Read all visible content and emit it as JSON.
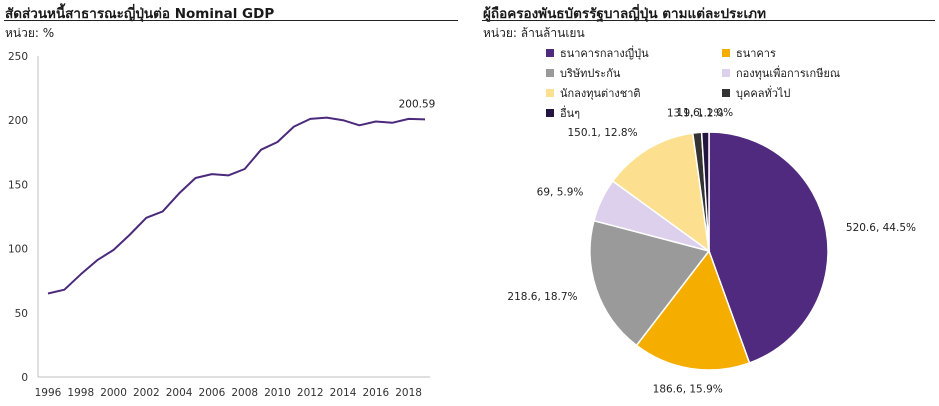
{
  "left_chart": {
    "title": "สัดส่วนหนี้สาธารณะญี่ปุ่นต่อ Nominal GDP",
    "unit": "หน่วย: %",
    "annotation": "200.59",
    "colors": {
      "line": "#4b2a7b",
      "axis": "#bfbfbf"
    }
  },
  "right_chart": {
    "title": "ผู้ถือครองพันธบัตรรัฐบาลญี่ปุ่น ตามแต่ละประเภท",
    "unit": "หน่วย: ล้านล้านเยน",
    "legend": [
      {
        "label": "ธนาคารกลางญี่ปุ่น",
        "color": "#4f2a7f"
      },
      {
        "label": "ธนาคาร",
        "color": "#f5ae00"
      },
      {
        "label": "บริษัทประกัน",
        "color": "#9a9a9a"
      },
      {
        "label": "กองทุนเพื่อการเกษียณ",
        "color": "#dcd0ec"
      },
      {
        "label": "นักลงทุนต่างชาติ",
        "color": "#fde08f"
      },
      {
        "label": "บุคคลทั่วไป",
        "color": "#333333"
      },
      {
        "label": "อื่นๆ",
        "color": "#241540"
      }
    ],
    "slice_labels": [
      "520.6, 44.5%",
      "186.6, 15.9%",
      "218.6, 18.7%",
      "69, 5.9%",
      "150.1, 12.8%",
      "13.9, 1.2%",
      "11.6, 1.0%"
    ]
  },
  "chart_data": [
    {
      "type": "line",
      "title": "สัดส่วนหนี้สาธารณะญี่ปุ่นต่อ Nominal GDP",
      "ylabel": "หน่วย: %",
      "xlabel": "",
      "ylim": [
        0,
        250
      ],
      "yticks": [
        0,
        50,
        100,
        150,
        200,
        250
      ],
      "xticks": [
        "1996",
        "1998",
        "2000",
        "2002",
        "2004",
        "2006",
        "2008",
        "2010",
        "2012",
        "2014",
        "2016",
        "2018"
      ],
      "x": [
        1996,
        1997,
        1998,
        1999,
        2000,
        2001,
        2002,
        2003,
        2004,
        2005,
        2006,
        2007,
        2008,
        2009,
        2010,
        2011,
        2012,
        2013,
        2014,
        2015,
        2016,
        2017,
        2018,
        2019
      ],
      "series": [
        {
          "values": [
            65,
            68,
            80,
            91,
            99,
            111,
            124,
            129,
            143,
            155,
            158,
            157,
            162,
            177,
            183,
            195,
            201,
            202,
            200,
            196,
            199,
            198,
            201,
            200.59
          ]
        }
      ],
      "grid": false
    },
    {
      "type": "pie",
      "title": "ผู้ถือครองพันธบัตรรัฐบาลญี่ปุ่น ตามแต่ละประเภท",
      "unit": "หน่วย: ล้านล้านเยน",
      "categories": [
        "ธนาคารกลางญี่ปุ่น",
        "ธนาคาร",
        "บริษัทประกัน",
        "กองทุนเพื่อการเกษียณ",
        "นักลงทุนต่างชาติ",
        "บุคคลทั่วไป",
        "อื่นๆ"
      ],
      "values": [
        520.6,
        186.6,
        218.6,
        69,
        150.1,
        13.9,
        11.6
      ],
      "percents": [
        44.5,
        15.9,
        18.7,
        5.9,
        12.8,
        1.2,
        1.0
      ],
      "legend_position": "top"
    }
  ]
}
